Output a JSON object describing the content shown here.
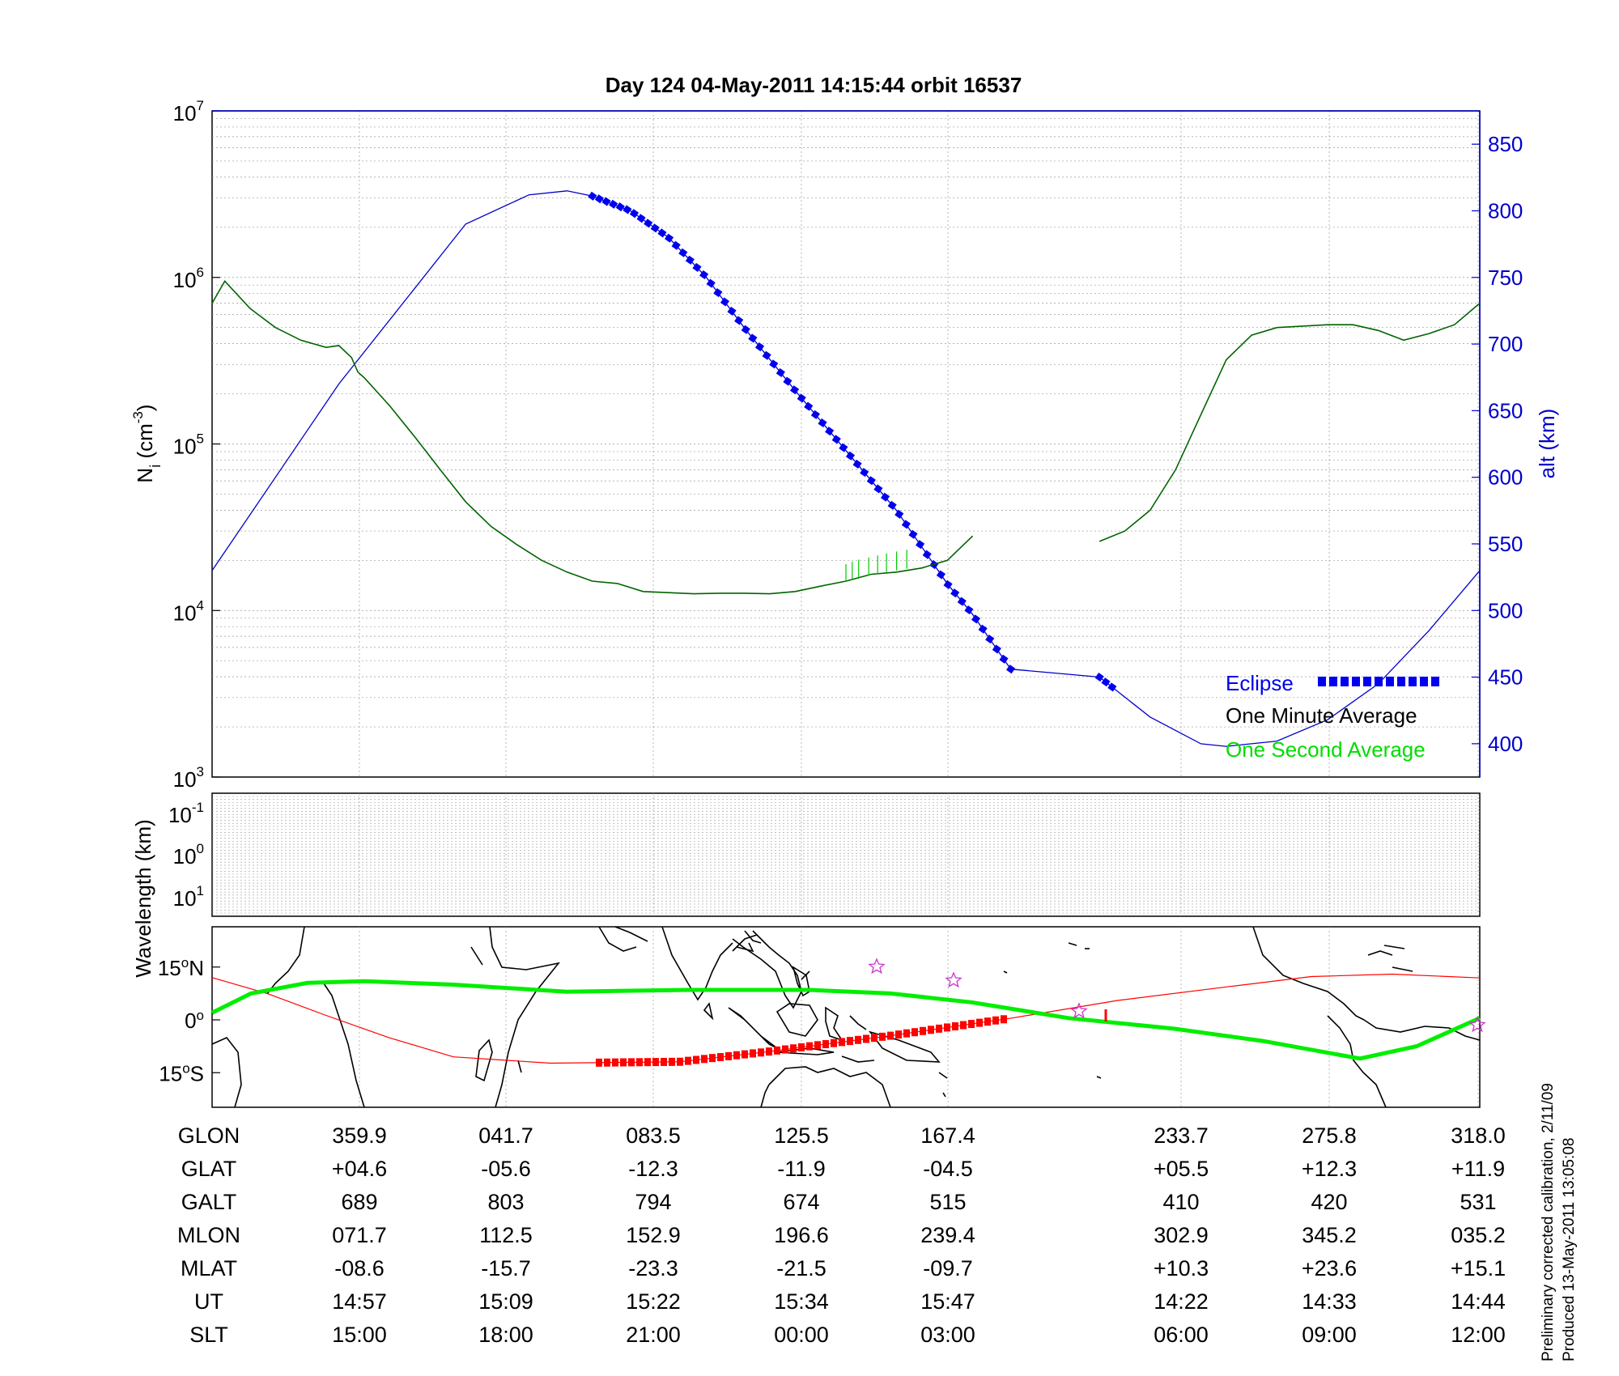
{
  "title": "Day 124  04-May-2011 14:15:44   orbit 16537",
  "panels": {
    "density": {
      "ylabel_main": "N",
      "ylabel_sub": "i",
      "ylabel_unit": "(cm",
      "ylabel_unit_exp": "-3",
      "ylabel_unit_close": ")",
      "y2label": "alt (km)",
      "ytick_base": "10",
      "yticks_exp": [
        "3",
        "4",
        "5",
        "6",
        "7"
      ],
      "y2ticks": [
        "400",
        "450",
        "500",
        "550",
        "600",
        "650",
        "700",
        "750",
        "800",
        "850"
      ]
    },
    "wavelength": {
      "ylabel": "Wavelength (km)",
      "ytick_base": "10",
      "yticks_exp": [
        "-1",
        "0",
        "1"
      ]
    },
    "map": {
      "yticks": [
        {
          "deg": "15",
          "hemi": "N"
        },
        {
          "deg": "0",
          "hemi": ""
        },
        {
          "deg": "15",
          "hemi": "S"
        }
      ]
    }
  },
  "legend": {
    "eclipse": "Eclipse",
    "minute": "One Minute Average",
    "second": "One Second Average"
  },
  "table": {
    "row_labels": [
      "GLON",
      "GLAT",
      "GALT",
      "MLON",
      "MLAT",
      "UT",
      "SLT"
    ],
    "columns": [
      [
        "359.9",
        "+04.6",
        "689",
        "071.7",
        "-08.6",
        "14:57",
        "15:00"
      ],
      [
        "041.7",
        "-05.6",
        "803",
        "112.5",
        "-15.7",
        "15:09",
        "18:00"
      ],
      [
        "083.5",
        "-12.3",
        "794",
        "152.9",
        "-23.3",
        "15:22",
        "21:00"
      ],
      [
        "125.5",
        "-11.9",
        "674",
        "196.6",
        "-21.5",
        "15:34",
        "00:00"
      ],
      [
        "167.4",
        "-04.5",
        "515",
        "239.4",
        "-09.7",
        "15:47",
        "03:00"
      ],
      [
        "233.7",
        "+05.5",
        "410",
        "302.9",
        "+10.3",
        "14:22",
        "06:00"
      ],
      [
        "275.8",
        "+12.3",
        "420",
        "345.2",
        "+23.6",
        "14:33",
        "09:00"
      ],
      [
        "318.0",
        "+11.9",
        "531",
        "035.2",
        "+15.1",
        "14:44",
        "12:00"
      ]
    ]
  },
  "footer": {
    "line1": "Preliminary corrected calibration, 2/11/09",
    "line2": "Produced 13-May-2011 13:05:08"
  },
  "colors": {
    "altitude": "#0000cc",
    "eclipse": "#0000ee",
    "minute_avg": "#006400",
    "second_avg": "#00cc00",
    "track": "#ff0000",
    "magnetic_equator": "#00ee00",
    "legend_second_text": "#00dd00",
    "axis_right": "#0000cc",
    "stars": "#cc33cc"
  },
  "chart_data": {
    "type": "line",
    "density_axis": {
      "scale": "log",
      "ylim": [
        1000,
        10000000
      ]
    },
    "altitude_axis": {
      "ylim": [
        375,
        875
      ]
    },
    "x_positions": [
      "15:00",
      "18:00",
      "21:00",
      "00:00",
      "03:00",
      "06:00",
      "09:00",
      "12:00"
    ],
    "series": [
      {
        "name": "One Minute Average",
        "x_frac": [
          0,
          0.01,
          0.03,
          0.05,
          0.07,
          0.09,
          0.1,
          0.11,
          0.115,
          0.12,
          0.14,
          0.16,
          0.18,
          0.2,
          0.22,
          0.24,
          0.26,
          0.28,
          0.3,
          0.32,
          0.34,
          0.36,
          0.38,
          0.4,
          0.42,
          0.44,
          0.46,
          0.48,
          0.5,
          0.52,
          0.54,
          0.56,
          0.57,
          0.58,
          0.6,
          0.62,
          0.63,
          null,
          0.7,
          0.72,
          0.74,
          0.76,
          0.78,
          0.8,
          0.82,
          0.84,
          0.86,
          0.88,
          0.9,
          0.92,
          0.94,
          0.96,
          0.98,
          1
        ],
        "y": [
          700000,
          950000,
          650000,
          500000,
          420000,
          380000,
          390000,
          330000,
          270000,
          250000,
          170000,
          110000,
          70000,
          45000,
          32000,
          25000,
          20000,
          17000,
          15000,
          14500,
          13000,
          12800,
          12600,
          12700,
          12700,
          12600,
          13000,
          14000,
          15000,
          16500,
          17000,
          18000,
          19000,
          20000,
          28000,
          null,
          null,
          null,
          26000,
          30000,
          40000,
          70000,
          150000,
          320000,
          450000,
          500000,
          510000,
          520000,
          520000,
          480000,
          420000,
          460000,
          520000,
          700000
        ]
      },
      {
        "name": "Altitude",
        "units": "km",
        "x_frac": [
          0,
          0.1,
          0.2,
          0.25,
          0.28,
          0.3,
          0.33,
          0.36,
          0.39,
          0.42,
          0.46,
          0.5,
          0.54,
          0.58,
          0.6,
          0.63,
          0.7,
          0.74,
          0.78,
          0.8,
          0.84,
          0.88,
          0.92,
          0.96,
          1
        ],
        "y": [
          530,
          670,
          790,
          812,
          815,
          811,
          800,
          780,
          750,
          712,
          665,
          620,
          575,
          520,
          497,
          456,
          450,
          420,
          400,
          398,
          402,
          418,
          445,
          485,
          530
        ]
      }
    ],
    "eclipse_intervals": [
      [
        "x_frac",
        0.3,
        0.63
      ],
      [
        "x_frac",
        0.7,
        0.71
      ]
    ],
    "map_geo_lat_track_deg": [
      4.6,
      -5.6,
      -12.3,
      -11.9,
      -4.5,
      5.5,
      12.3,
      11.9
    ],
    "grid": true,
    "legend_position": "bottom-right"
  }
}
